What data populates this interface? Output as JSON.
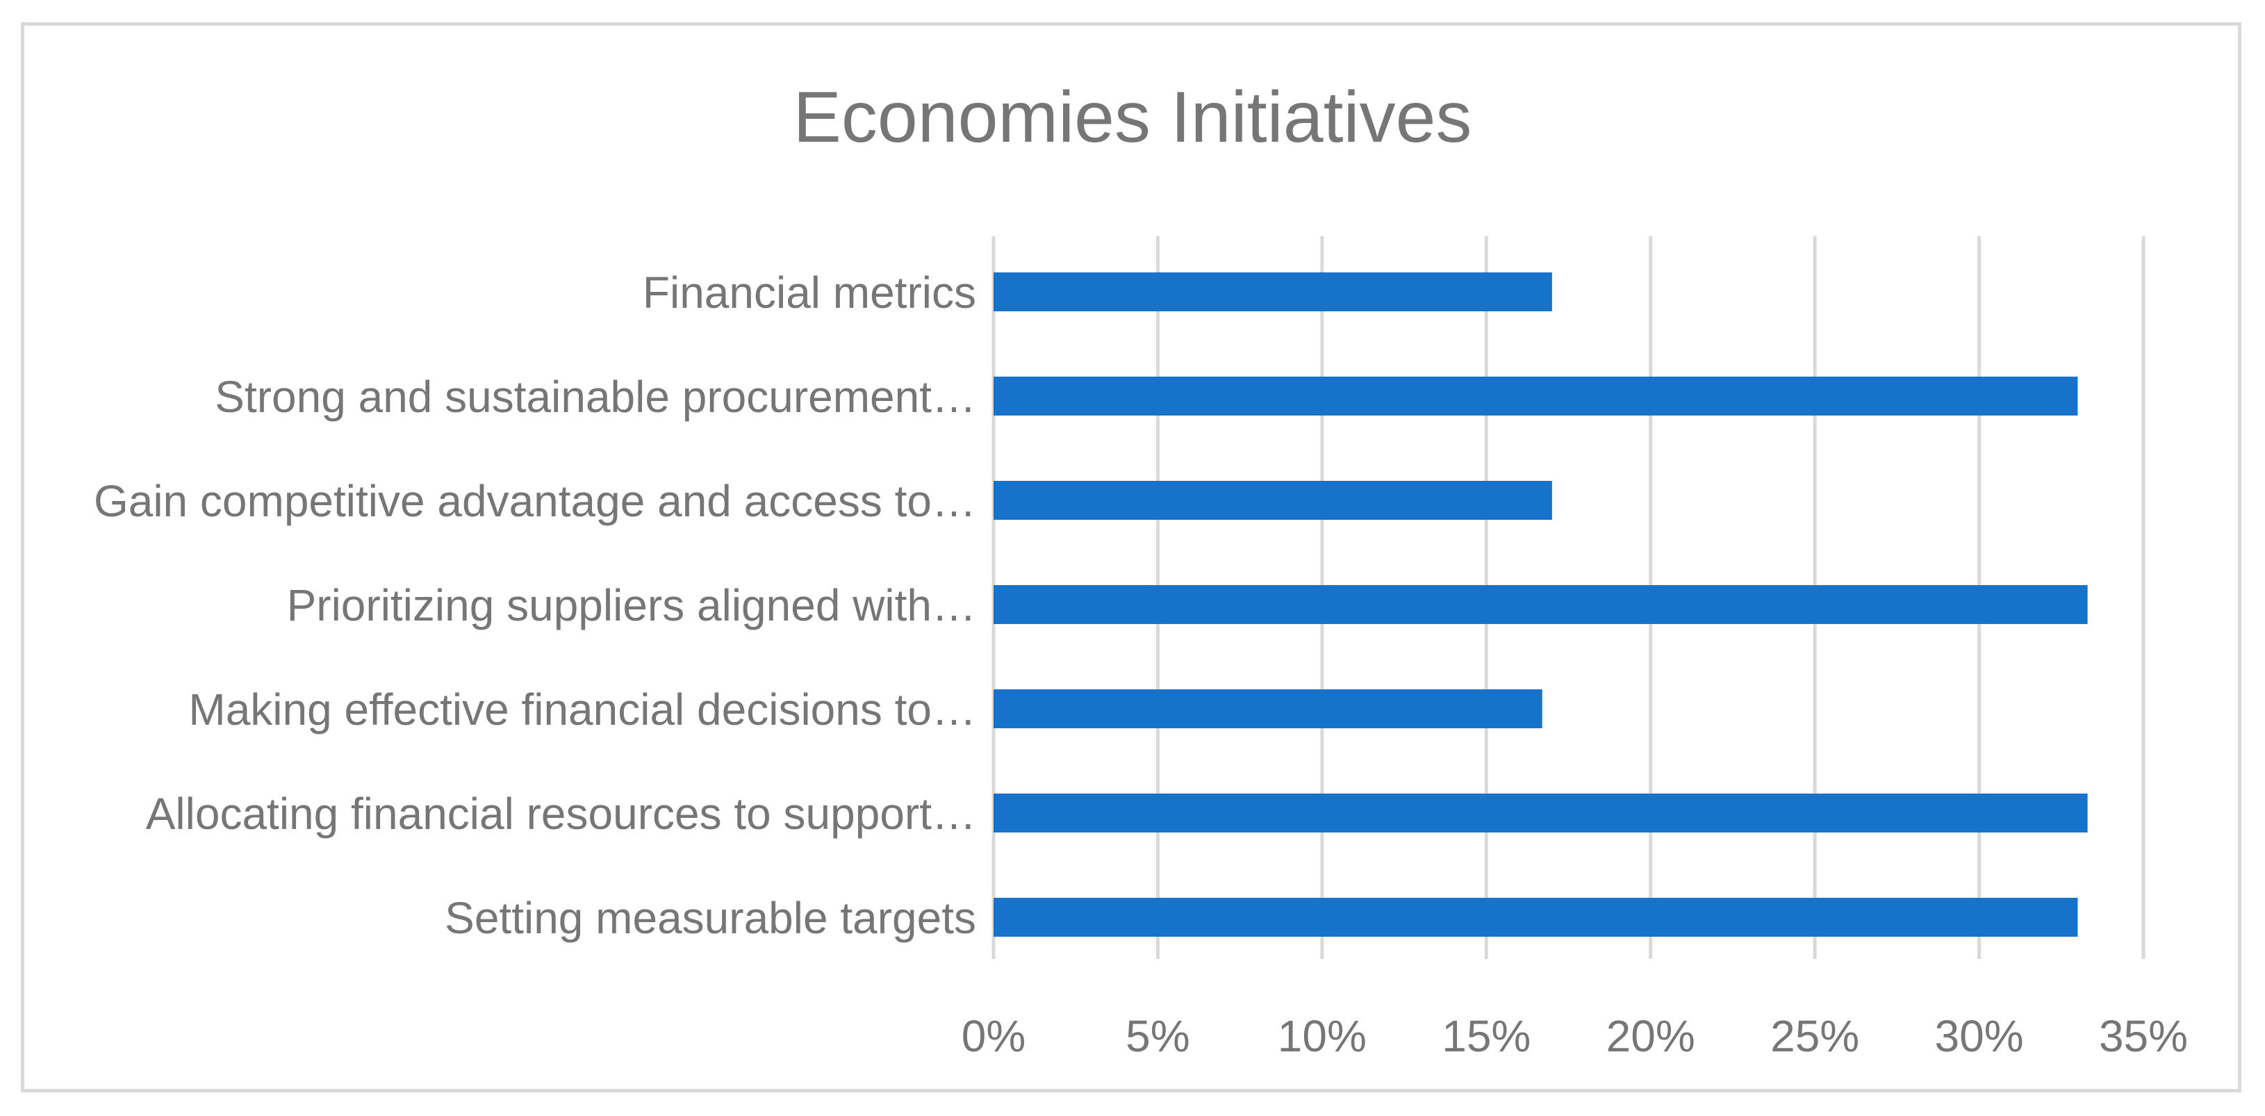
{
  "chart_data": {
    "type": "bar",
    "orientation": "horizontal",
    "title": "Economies Initiatives",
    "categories": [
      "Financial metrics",
      "Strong and sustainable procurement…",
      "Gain competitive advantage and access to…",
      "Prioritizing suppliers aligned with…",
      "Making effective financial decisions to…",
      "Allocating financial resources to support…",
      "Setting measurable targets"
    ],
    "values": [
      17,
      33,
      17,
      33.3,
      16.7,
      33.3,
      33
    ],
    "xlim": [
      0,
      35
    ],
    "xticks": [
      "0%",
      "5%",
      "10%",
      "15%",
      "20%",
      "25%",
      "30%",
      "35%"
    ],
    "grid": true,
    "legend": "none",
    "colors": {
      "bar": "#1772c9",
      "grid": "#d9d9d9",
      "text": "#767676",
      "border": "#d9d9d9"
    }
  }
}
